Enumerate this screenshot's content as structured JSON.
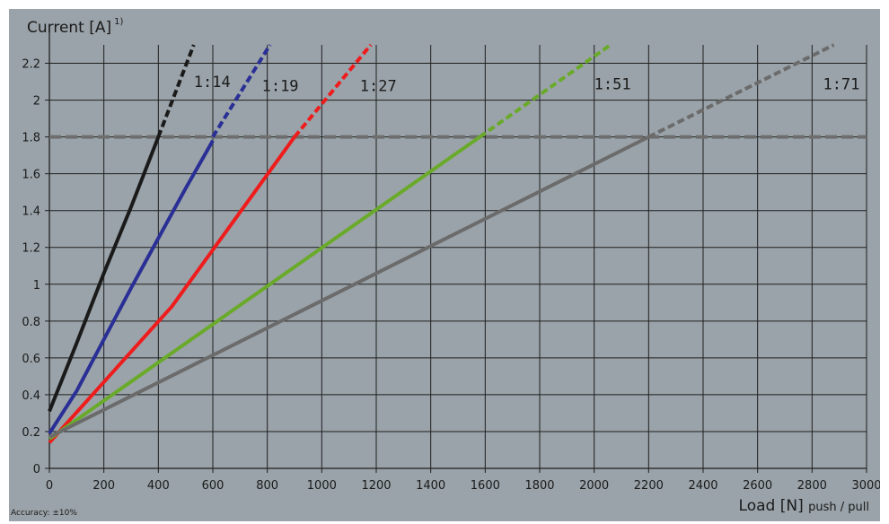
{
  "chart_data": {
    "type": "line",
    "ylabel": "Current [A]",
    "ylabel_superscript": "1)",
    "xlabel": "Load [N]",
    "xlabel_suffix": "push / pull",
    "footnote": "Accuracy: ±10%",
    "xlim": [
      0,
      3000
    ],
    "ylim": [
      0,
      2.3
    ],
    "x_ticks": [
      0,
      200,
      400,
      600,
      800,
      1000,
      1200,
      1400,
      1600,
      1800,
      2000,
      2200,
      2400,
      2600,
      2800,
      3000
    ],
    "y_ticks": [
      0,
      0.2,
      0.4,
      0.6,
      0.8,
      1,
      1.2,
      1.4,
      1.6,
      1.8,
      2,
      2.2
    ],
    "grid": true,
    "reference_line": {
      "y": 1.8,
      "style": "dashed",
      "color": "#6e6e6e"
    },
    "series": [
      {
        "name": "1:14",
        "color": "#1a1a1a",
        "solid": [
          [
            0,
            0.31
          ],
          [
            100,
            0.68
          ],
          [
            200,
            1.06
          ],
          [
            300,
            1.42
          ],
          [
            400,
            1.8
          ]
        ],
        "dashed": [
          [
            400,
            1.8
          ],
          [
            530,
            2.3
          ]
        ]
      },
      {
        "name": "1:19",
        "color": "#2a2f96",
        "solid": [
          [
            0,
            0.19
          ],
          [
            100,
            0.42
          ],
          [
            200,
            0.7
          ],
          [
            300,
            0.98
          ],
          [
            400,
            1.25
          ],
          [
            500,
            1.52
          ],
          [
            600,
            1.78
          ]
        ],
        "dashed": [
          [
            600,
            1.8
          ],
          [
            810,
            2.3
          ]
        ]
      },
      {
        "name": "1:27",
        "color": "#ee1c1c",
        "solid": [
          [
            0,
            0.14
          ],
          [
            450,
            0.88
          ],
          [
            900,
            1.8
          ]
        ],
        "dashed": [
          [
            900,
            1.8
          ],
          [
            1180,
            2.3
          ]
        ]
      },
      {
        "name": "1:51",
        "color": "#6aaa2a",
        "solid": [
          [
            0,
            0.16
          ],
          [
            800,
            0.99
          ],
          [
            1580,
            1.8
          ]
        ],
        "dashed": [
          [
            1580,
            1.8
          ],
          [
            2060,
            2.3
          ]
        ]
      },
      {
        "name": "1:71",
        "color": "#6b6b6b",
        "solid": [
          [
            0,
            0.17
          ],
          [
            2200,
            1.8
          ]
        ],
        "dashed": [
          [
            2200,
            1.8
          ],
          [
            2880,
            2.3
          ]
        ]
      }
    ],
    "label_positions": [
      {
        "name": "1:14",
        "x": 530,
        "y": 2.07
      },
      {
        "name": "1:19",
        "x": 780,
        "y": 2.05
      },
      {
        "name": "1:27",
        "x": 1140,
        "y": 2.05
      },
      {
        "name": "1:51",
        "x": 2000,
        "y": 2.06
      },
      {
        "name": "1:71",
        "x": 2840,
        "y": 2.06
      }
    ]
  }
}
